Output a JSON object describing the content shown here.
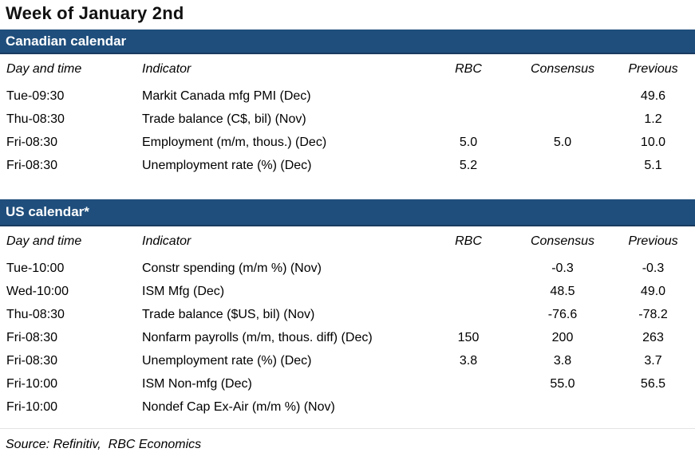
{
  "title": "Week of January 2nd",
  "colors": {
    "section_bar_bg": "#1F4E7C",
    "section_bar_edge": "#1A3B60",
    "section_bar_text": "#FFFFFF",
    "body_text": "#000000",
    "rule": "#E3E3E3"
  },
  "columns": {
    "day": "Day and time",
    "indicator": "Indicator",
    "rbc": "RBC",
    "consensus": "Consensus",
    "previous": "Previous"
  },
  "sections": [
    {
      "name": "Canadian calendar",
      "rows": [
        {
          "day": "Tue-09:30",
          "indicator": "Markit Canada mfg PMI (Dec)",
          "rbc": "",
          "consensus": "",
          "previous": "49.6"
        },
        {
          "day": "Thu-08:30",
          "indicator": "Trade balance (C$, bil) (Nov)",
          "rbc": "",
          "consensus": "",
          "previous": "1.2"
        },
        {
          "day": "Fri-08:30",
          "indicator": "Employment (m/m, thous.) (Dec)",
          "rbc": "5.0",
          "consensus": "5.0",
          "previous": "10.0"
        },
        {
          "day": "Fri-08:30",
          "indicator": "Unemployment rate (%) (Dec)",
          "rbc": "5.2",
          "consensus": "",
          "previous": "5.1"
        }
      ]
    },
    {
      "name": "US calendar*",
      "rows": [
        {
          "day": "Tue-10:00",
          "indicator": "Constr spending (m/m %) (Nov)",
          "rbc": "",
          "consensus": "-0.3",
          "previous": "-0.3"
        },
        {
          "day": "Wed-10:00",
          "indicator": "ISM Mfg (Dec)",
          "rbc": "",
          "consensus": "48.5",
          "previous": "49.0"
        },
        {
          "day": "Thu-08:30",
          "indicator": "Trade balance ($US, bil) (Nov)",
          "rbc": "",
          "consensus": "-76.6",
          "previous": "-78.2"
        },
        {
          "day": "Fri-08:30",
          "indicator": "Nonfarm payrolls (m/m, thous. diff) (Dec)",
          "rbc": "150",
          "consensus": "200",
          "previous": "263"
        },
        {
          "day": "Fri-08:30",
          "indicator": "Unemployment rate (%) (Dec)",
          "rbc": "3.8",
          "consensus": "3.8",
          "previous": "3.7"
        },
        {
          "day": "Fri-10:00",
          "indicator": "ISM Non-mfg (Dec)",
          "rbc": "",
          "consensus": "55.0",
          "previous": "56.5"
        },
        {
          "day": "Fri-10:00",
          "indicator": "Nondef Cap Ex-Air (m/m %) (Nov)",
          "rbc": "",
          "consensus": "",
          "previous": ""
        }
      ]
    }
  ],
  "source": "Source: Refinitiv,  RBC Economics"
}
